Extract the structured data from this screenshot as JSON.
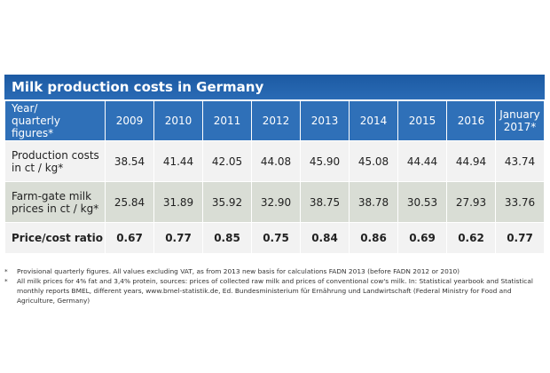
{
  "title": "Milk production costs in Germany",
  "table": {
    "header": [
      [
        "Year/",
        "quarterly figures*"
      ],
      [
        "2009"
      ],
      [
        "2010"
      ],
      [
        "2011"
      ],
      [
        "2012"
      ],
      [
        "2013"
      ],
      [
        "2014"
      ],
      [
        "2015"
      ],
      [
        "2016"
      ],
      [
        "January",
        "2017*"
      ]
    ],
    "rows": [
      {
        "label": [
          "Production costs",
          "in ct / kg*"
        ],
        "cells": [
          "38.54",
          "41.44",
          "42.05",
          "44.08",
          "45.90",
          "45.08",
          "44.44",
          "44.94",
          "43.74"
        ]
      },
      {
        "label": [
          "Farm-gate milk",
          "prices in ct / kg*"
        ],
        "cells": [
          "25.84",
          "31.89",
          "35.92",
          "32.90",
          "38.75",
          "38.78",
          "30.53",
          "27.93",
          "33.76"
        ]
      },
      {
        "label": [
          "Price/cost ratio"
        ],
        "cells": [
          "0.67",
          "0.77",
          "0.85",
          "0.75",
          "0.84",
          "0.86",
          "0.69",
          "0.62",
          "0.77"
        ]
      }
    ]
  },
  "footnotes": [
    {
      "marker": "*",
      "text": "Provisional quarterly figures. All values excluding VAT, as from 2013 new basis for calculations FADN 2013 (before FADN 2012 or 2010)"
    },
    {
      "marker": "*",
      "text": "All milk prices for 4% fat and 3,4% protein, sources: prices of collected raw milk and prices of conventional cow's milk. In: Statistical yearbook and Statistical monthly reports BMEL, different years, www.bmel-statistik.de, Ed. Bundesministerium für Ernährung und Landwirtschaft (Federal Ministry for Food and Agriculture, Germany)"
    }
  ]
}
